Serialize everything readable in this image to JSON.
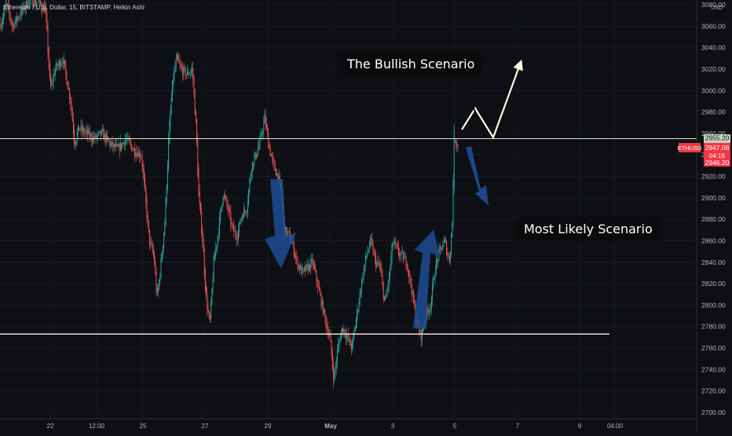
{
  "header": {
    "symbol_title": "Ethereum / U.S. Dollar, 15, BITSTAMP, Heikin Ashi"
  },
  "annotations": {
    "bullish_label": "The Bullish Scenario",
    "likely_label": "Most Likely Scenario"
  },
  "price_axis": {
    "currency": "USD",
    "ticks": [
      "3080.00",
      "3060.00",
      "3040.00",
      "3020.00",
      "3000.00",
      "2980.00",
      "2960.00",
      "2940.00",
      "2920.00",
      "2900.00",
      "2880.00",
      "2860.00",
      "2840.00",
      "2820.00",
      "2800.00",
      "2780.00",
      "2760.00",
      "2740.00",
      "2720.00",
      "2700.00"
    ],
    "crosshair_price": "2955.20",
    "last_badge": {
      "symbol": "ETHUSD",
      "price": "2947.08",
      "countdown": "04:16",
      "low_price": "2946.20"
    }
  },
  "time_axis": {
    "ticks": [
      "22",
      "12:00",
      "25",
      "27",
      "29",
      "May",
      "3",
      "5",
      "7",
      "9",
      "04:00"
    ]
  },
  "colors": {
    "background": "#0d0f14",
    "up_candle": "#26a69a",
    "down_candle": "#ef5350",
    "horizontal_line": "#f2dcd6",
    "crosshair_line": "#d8e6cc",
    "bullish_path": "#fffbe0",
    "down_arrow": "#1f4b94",
    "badge_red": "#f23645"
  },
  "chart_data": {
    "type": "candlestick",
    "title": "Ethereum / U.S. Dollar, 15, BITSTAMP, Heikin Ashi",
    "ylim": [
      2695,
      3080
    ],
    "y_unit": "USD",
    "support_level": 2773,
    "crosshair_level": 2955.2,
    "last_price": 2947.08,
    "price_path": [
      {
        "x": 0,
        "price": 3060
      },
      {
        "x": 8,
        "price": 3080
      },
      {
        "x": 16,
        "price": 3060
      },
      {
        "x": 24,
        "price": 3070
      },
      {
        "x": 38,
        "price": 3085
      },
      {
        "x": 48,
        "price": 3082
      },
      {
        "x": 58,
        "price": 3075
      },
      {
        "x": 64,
        "price": 3000
      },
      {
        "x": 70,
        "price": 3020
      },
      {
        "x": 80,
        "price": 3030
      },
      {
        "x": 90,
        "price": 2990
      },
      {
        "x": 95,
        "price": 2950
      },
      {
        "x": 100,
        "price": 2965
      },
      {
        "x": 110,
        "price": 2960
      },
      {
        "x": 120,
        "price": 2955
      },
      {
        "x": 130,
        "price": 2960
      },
      {
        "x": 140,
        "price": 2950
      },
      {
        "x": 150,
        "price": 2945
      },
      {
        "x": 160,
        "price": 2955
      },
      {
        "x": 170,
        "price": 2945
      },
      {
        "x": 180,
        "price": 2940
      },
      {
        "x": 185,
        "price": 2900
      },
      {
        "x": 190,
        "price": 2860
      },
      {
        "x": 196,
        "price": 2845
      },
      {
        "x": 200,
        "price": 2805
      },
      {
        "x": 205,
        "price": 2840
      },
      {
        "x": 210,
        "price": 2880
      },
      {
        "x": 215,
        "price": 2960
      },
      {
        "x": 220,
        "price": 3010
      },
      {
        "x": 225,
        "price": 3030
      },
      {
        "x": 230,
        "price": 3020
      },
      {
        "x": 238,
        "price": 3015
      },
      {
        "x": 245,
        "price": 3020
      },
      {
        "x": 250,
        "price": 2960
      },
      {
        "x": 253,
        "price": 2900
      },
      {
        "x": 258,
        "price": 2860
      },
      {
        "x": 262,
        "price": 2810
      },
      {
        "x": 267,
        "price": 2780
      },
      {
        "x": 272,
        "price": 2840
      },
      {
        "x": 278,
        "price": 2870
      },
      {
        "x": 284,
        "price": 2905
      },
      {
        "x": 290,
        "price": 2890
      },
      {
        "x": 296,
        "price": 2870
      },
      {
        "x": 302,
        "price": 2865
      },
      {
        "x": 308,
        "price": 2885
      },
      {
        "x": 314,
        "price": 2890
      },
      {
        "x": 320,
        "price": 2930
      },
      {
        "x": 326,
        "price": 2940
      },
      {
        "x": 332,
        "price": 2955
      },
      {
        "x": 337,
        "price": 2975
      },
      {
        "x": 342,
        "price": 2950
      },
      {
        "x": 348,
        "price": 2930
      },
      {
        "x": 354,
        "price": 2920
      },
      {
        "x": 358,
        "price": 2905
      },
      {
        "x": 362,
        "price": 2870
      },
      {
        "x": 368,
        "price": 2865
      },
      {
        "x": 373,
        "price": 2855
      },
      {
        "x": 378,
        "price": 2840
      },
      {
        "x": 385,
        "price": 2830
      },
      {
        "x": 392,
        "price": 2835
      },
      {
        "x": 398,
        "price": 2840
      },
      {
        "x": 404,
        "price": 2820
      },
      {
        "x": 410,
        "price": 2800
      },
      {
        "x": 416,
        "price": 2780
      },
      {
        "x": 420,
        "price": 2770
      },
      {
        "x": 425,
        "price": 2730
      },
      {
        "x": 430,
        "price": 2760
      },
      {
        "x": 436,
        "price": 2780
      },
      {
        "x": 442,
        "price": 2770
      },
      {
        "x": 448,
        "price": 2760
      },
      {
        "x": 454,
        "price": 2790
      },
      {
        "x": 460,
        "price": 2820
      },
      {
        "x": 466,
        "price": 2845
      },
      {
        "x": 472,
        "price": 2860
      },
      {
        "x": 478,
        "price": 2840
      },
      {
        "x": 484,
        "price": 2835
      },
      {
        "x": 490,
        "price": 2800
      },
      {
        "x": 496,
        "price": 2830
      },
      {
        "x": 500,
        "price": 2860
      },
      {
        "x": 506,
        "price": 2850
      },
      {
        "x": 512,
        "price": 2845
      },
      {
        "x": 518,
        "price": 2840
      },
      {
        "x": 524,
        "price": 2815
      },
      {
        "x": 530,
        "price": 2785
      },
      {
        "x": 536,
        "price": 2770
      },
      {
        "x": 542,
        "price": 2790
      },
      {
        "x": 548,
        "price": 2800
      },
      {
        "x": 554,
        "price": 2835
      },
      {
        "x": 560,
        "price": 2850
      },
      {
        "x": 566,
        "price": 2860
      },
      {
        "x": 572,
        "price": 2840
      },
      {
        "x": 576,
        "price": 2880
      },
      {
        "x": 578,
        "price": 2960
      },
      {
        "x": 582,
        "price": 2950
      },
      {
        "x": 584,
        "price": 2948
      }
    ]
  }
}
